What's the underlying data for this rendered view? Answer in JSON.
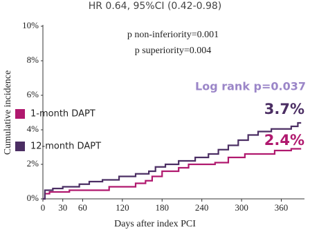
{
  "chart_data": {
    "type": "step",
    "title": "HR 0.64, 95%CI (0.42-0.98)",
    "xlabel": "Days after index PCI",
    "ylabel": "Cumulative incidence",
    "xlim": [
      0,
      395
    ],
    "ylim": [
      0,
      10
    ],
    "xticks": [
      0,
      30,
      60,
      120,
      180,
      240,
      300,
      360
    ],
    "yticks": [
      {
        "value": 0,
        "label": "0%"
      },
      {
        "value": 2,
        "label": "2%"
      },
      {
        "value": 4,
        "label": "4%"
      },
      {
        "value": 6,
        "label": "6%"
      },
      {
        "value": 8,
        "label": "8%"
      },
      {
        "value": 10,
        "label": "10%"
      }
    ],
    "legend": "left",
    "series": [
      {
        "name": "1-month DAPT",
        "color": "#b0186e",
        "x": [
          0,
          3,
          3,
          10,
          10,
          40,
          40,
          100,
          100,
          140,
          140,
          155,
          155,
          165,
          165,
          180,
          180,
          205,
          205,
          220,
          220,
          260,
          260,
          280,
          280,
          305,
          305,
          350,
          350,
          375,
          375,
          390
        ],
        "values": [
          0,
          0,
          0.3,
          0.3,
          0.4,
          0.4,
          0.5,
          0.5,
          0.7,
          0.7,
          0.9,
          0.9,
          1.05,
          1.05,
          1.3,
          1.3,
          1.6,
          1.6,
          1.8,
          1.8,
          2.0,
          2.0,
          2.1,
          2.1,
          2.4,
          2.4,
          2.6,
          2.6,
          2.8,
          2.8,
          2.9,
          2.9
        ]
      },
      {
        "name": "12-month DAPT",
        "color": "#4b2e63",
        "x": [
          0,
          3,
          3,
          15,
          15,
          30,
          30,
          55,
          55,
          70,
          70,
          90,
          90,
          115,
          115,
          140,
          140,
          160,
          160,
          170,
          170,
          185,
          185,
          205,
          205,
          230,
          230,
          250,
          250,
          265,
          265,
          280,
          280,
          295,
          295,
          310,
          310,
          325,
          325,
          345,
          345,
          375,
          375,
          385,
          385,
          390
        ],
        "values": [
          0,
          0,
          0.5,
          0.5,
          0.6,
          0.6,
          0.7,
          0.7,
          0.85,
          0.85,
          1.0,
          1.0,
          1.1,
          1.1,
          1.3,
          1.3,
          1.45,
          1.45,
          1.6,
          1.6,
          1.85,
          1.85,
          2.0,
          2.0,
          2.2,
          2.2,
          2.4,
          2.4,
          2.6,
          2.6,
          2.85,
          2.85,
          3.1,
          3.1,
          3.4,
          3.4,
          3.7,
          3.7,
          3.9,
          3.9,
          4.05,
          4.05,
          4.2,
          4.2,
          4.4,
          4.4
        ]
      }
    ],
    "annotations": [
      {
        "text": "p non-inferiority=0.001",
        "color": "#222222"
      },
      {
        "text": "p superiority=0.004",
        "color": "#222222"
      },
      {
        "text": "Log rank p=0.037",
        "color": "#9b86c8"
      },
      {
        "text": "3.7%",
        "color": "#4b2e63"
      },
      {
        "text": "2.4%",
        "color": "#b0186e"
      }
    ]
  }
}
